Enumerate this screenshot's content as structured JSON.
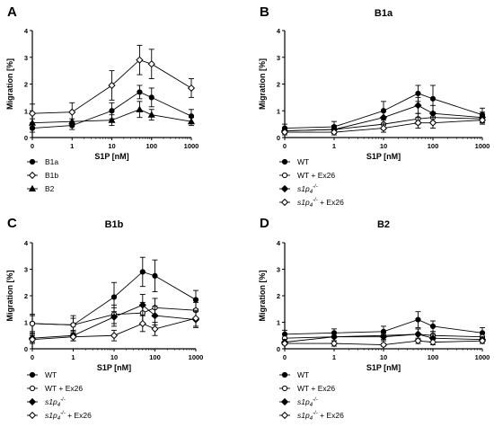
{
  "chart_data": [
    {
      "panel": "A",
      "type": "line",
      "title": "",
      "xlabel": "S1P [nM]",
      "ylabel": "Migration [%]",
      "xscale": "log (0 at origin)",
      "x": [
        0,
        1,
        10,
        50,
        100,
        1000
      ],
      "xticks": [
        "0",
        "1",
        "10",
        "100",
        "1000"
      ],
      "ylim": [
        0,
        4
      ],
      "yticks": [
        "0",
        "1",
        "2",
        "3",
        "4"
      ],
      "legend_position": "below",
      "series": [
        {
          "name": "B1a",
          "marker": "circle-filled",
          "values": [
            0.35,
            0.45,
            1.0,
            1.7,
            1.5,
            0.8
          ],
          "errors": [
            0.15,
            0.15,
            0.3,
            0.25,
            0.35,
            0.25
          ]
        },
        {
          "name": "B1b",
          "marker": "diamond-open",
          "values": [
            0.9,
            0.95,
            1.95,
            2.9,
            2.75,
            1.85
          ],
          "errors": [
            0.35,
            0.35,
            0.55,
            0.55,
            0.55,
            0.35
          ]
        },
        {
          "name": "B2",
          "marker": "triangle-filled",
          "values": [
            0.55,
            0.6,
            0.65,
            1.05,
            0.85,
            0.6
          ],
          "errors": [
            0.15,
            0.1,
            0.2,
            0.3,
            0.2,
            0.15
          ]
        }
      ]
    },
    {
      "panel": "B",
      "type": "line",
      "title": "B1a",
      "xlabel": "S1P [nM]",
      "ylabel": "Migration [%]",
      "xscale": "log (0 at origin)",
      "x": [
        0,
        1,
        10,
        50,
        100,
        1000
      ],
      "xticks": [
        "0",
        "1",
        "10",
        "100",
        "1000"
      ],
      "ylim": [
        0,
        4
      ],
      "yticks": [
        "0",
        "1",
        "2",
        "3",
        "4"
      ],
      "legend_position": "below",
      "series": [
        {
          "name": "WT",
          "marker": "circle-filled",
          "values": [
            0.35,
            0.4,
            1.0,
            1.65,
            1.45,
            0.85
          ],
          "errors": [
            0.15,
            0.2,
            0.35,
            0.3,
            0.5,
            0.25
          ]
        },
        {
          "name": "WT + Ex26",
          "marker": "circle-open",
          "values": [
            0.25,
            0.3,
            0.5,
            0.7,
            0.75,
            0.7
          ],
          "errors": [
            0.1,
            0.1,
            0.2,
            0.2,
            0.2,
            0.15
          ]
        },
        {
          "name": "s1p4-/-",
          "marker": "diamond-filled",
          "values": [
            0.25,
            0.3,
            0.75,
            1.2,
            0.9,
            0.75
          ],
          "errors": [
            0.1,
            0.15,
            0.25,
            0.3,
            0.3,
            0.2
          ]
        },
        {
          "name": "s1p4-/- + Ex26",
          "marker": "diamond-open",
          "values": [
            0.2,
            0.2,
            0.35,
            0.55,
            0.55,
            0.65
          ],
          "errors": [
            0.1,
            0.1,
            0.15,
            0.2,
            0.2,
            0.15
          ]
        }
      ]
    },
    {
      "panel": "C",
      "type": "line",
      "title": "B1b",
      "xlabel": "S1P [nM]",
      "ylabel": "Migration [%]",
      "xscale": "log (0 at origin)",
      "x": [
        0,
        1,
        10,
        50,
        100,
        1000
      ],
      "xticks": [
        "0",
        "1",
        "10",
        "100",
        "1000"
      ],
      "ylim": [
        0,
        4
      ],
      "yticks": [
        "0",
        "1",
        "2",
        "3",
        "4"
      ],
      "legend_position": "below",
      "series": [
        {
          "name": "WT",
          "marker": "circle-filled",
          "values": [
            0.95,
            0.9,
            1.95,
            2.9,
            2.75,
            1.85
          ],
          "errors": [
            0.35,
            0.35,
            0.55,
            0.55,
            0.6,
            0.35
          ]
        },
        {
          "name": "WT + Ex26",
          "marker": "circle-open",
          "values": [
            0.95,
            0.9,
            1.3,
            1.35,
            1.55,
            1.45
          ],
          "errors": [
            0.3,
            0.25,
            0.35,
            0.4,
            0.35,
            0.3
          ]
        },
        {
          "name": "s1p4-/-",
          "marker": "diamond-filled",
          "values": [
            0.4,
            0.5,
            1.2,
            1.65,
            1.25,
            1.1
          ],
          "errors": [
            0.15,
            0.2,
            0.35,
            0.4,
            0.35,
            0.3
          ]
        },
        {
          "name": "s1p4-/- + Ex26",
          "marker": "diamond-open",
          "values": [
            0.35,
            0.45,
            0.5,
            0.95,
            0.75,
            1.15
          ],
          "errors": [
            0.15,
            0.15,
            0.2,
            0.3,
            0.25,
            0.3
          ]
        }
      ]
    },
    {
      "panel": "D",
      "type": "line",
      "title": "B2",
      "xlabel": "S1P [nM]",
      "ylabel": "Migration [%]",
      "xscale": "log (0 at origin)",
      "x": [
        0,
        1,
        10,
        50,
        100,
        1000
      ],
      "xticks": [
        "0",
        "1",
        "10",
        "100",
        "1000"
      ],
      "ylim": [
        0,
        4
      ],
      "yticks": [
        "0",
        "1",
        "2",
        "3",
        "4"
      ],
      "legend_position": "below",
      "series": [
        {
          "name": "WT",
          "marker": "circle-filled",
          "values": [
            0.55,
            0.6,
            0.65,
            1.1,
            0.85,
            0.6
          ],
          "errors": [
            0.15,
            0.15,
            0.2,
            0.3,
            0.2,
            0.2
          ]
        },
        {
          "name": "WT + Ex26",
          "marker": "circle-open",
          "values": [
            0.4,
            0.45,
            0.5,
            0.55,
            0.5,
            0.45
          ],
          "errors": [
            0.15,
            0.15,
            0.15,
            0.2,
            0.15,
            0.15
          ]
        },
        {
          "name": "s1p4-/-",
          "marker": "diamond-filled",
          "values": [
            0.25,
            0.45,
            0.45,
            0.55,
            0.4,
            0.35
          ],
          "errors": [
            0.1,
            0.15,
            0.15,
            0.2,
            0.15,
            0.1
          ]
        },
        {
          "name": "s1p4-/- + Ex26",
          "marker": "diamond-open",
          "values": [
            0.2,
            0.2,
            0.15,
            0.3,
            0.25,
            0.3
          ],
          "errors": [
            0.05,
            0.1,
            0.05,
            0.1,
            0.1,
            0.1
          ]
        }
      ]
    }
  ]
}
